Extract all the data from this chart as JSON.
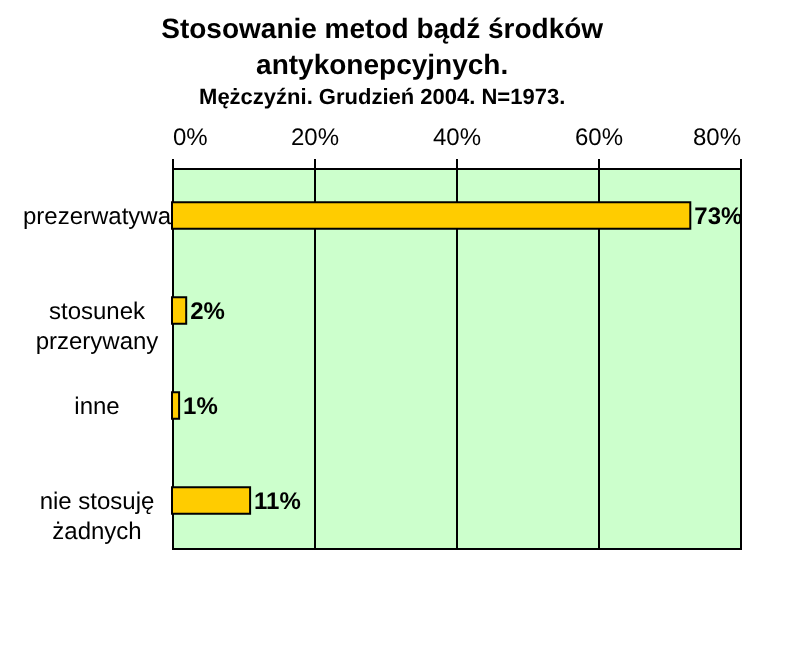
{
  "chart_data": {
    "type": "bar",
    "orientation": "horizontal",
    "title": "Stosowanie metod bądź środków\nantykonepcyjnych.",
    "subtitle": "Mężczyźni. Grudzień 2004. N=1973.",
    "categories": [
      "prezerwatywa",
      "stosunek\nprzerywany",
      "inne",
      "nie stosuję\nżadnych"
    ],
    "values": [
      73,
      2,
      1,
      11
    ],
    "color": "#ffcc00",
    "value_labels": [
      "73%",
      "2%",
      "1%",
      "11%"
    ],
    "xlim": [
      0,
      80
    ],
    "xticks": [
      {
        "value": 0,
        "label": "0%"
      },
      {
        "value": 20,
        "label": "20%"
      },
      {
        "value": 40,
        "label": "40%"
      },
      {
        "value": 60,
        "label": "60%"
      },
      {
        "value": 80,
        "label": "80%"
      }
    ],
    "grid": "x"
  }
}
